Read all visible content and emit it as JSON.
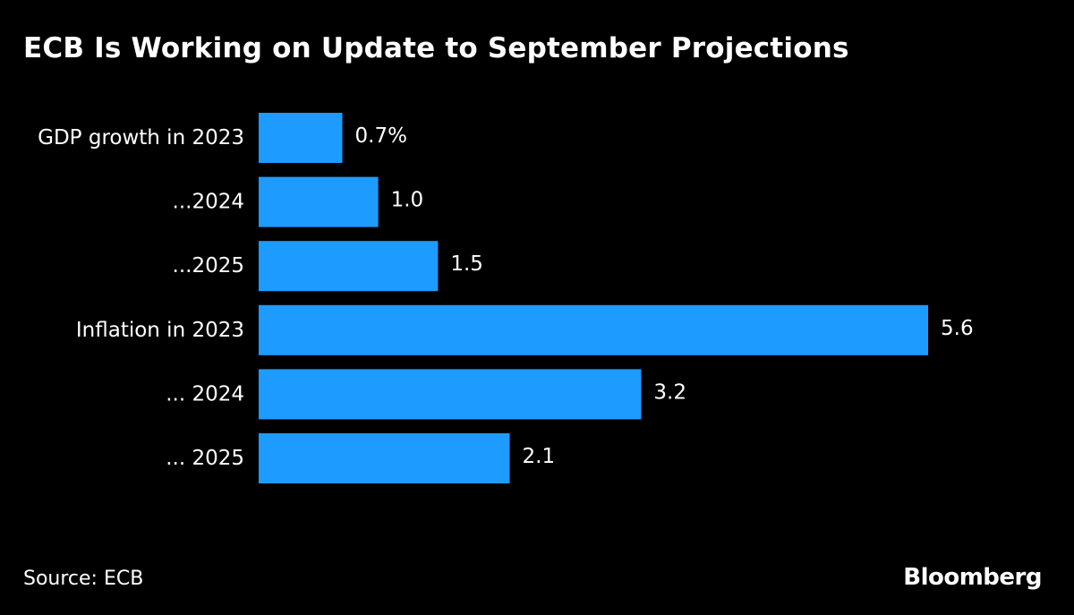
{
  "chart_data": {
    "type": "bar",
    "orientation": "horizontal",
    "title": "ECB Is Working on Update to September Projections",
    "categories": [
      "GDP growth in 2023",
      "...2024",
      "...2025",
      "Inflation in 2023",
      "... 2024",
      "... 2025"
    ],
    "values": [
      0.7,
      1.0,
      1.5,
      5.6,
      3.2,
      2.1
    ],
    "value_labels": [
      "0.7%",
      "1.0",
      "1.5",
      "5.6",
      "3.2",
      "2.1"
    ],
    "xlim": [
      0,
      5.6
    ],
    "grid": false,
    "legend": "none"
  },
  "colors": {
    "background": "#000000",
    "bar": "#1e9bff",
    "text": "#ffffff"
  },
  "footer": {
    "source": "Source: ECB",
    "brand": "Bloomberg"
  }
}
